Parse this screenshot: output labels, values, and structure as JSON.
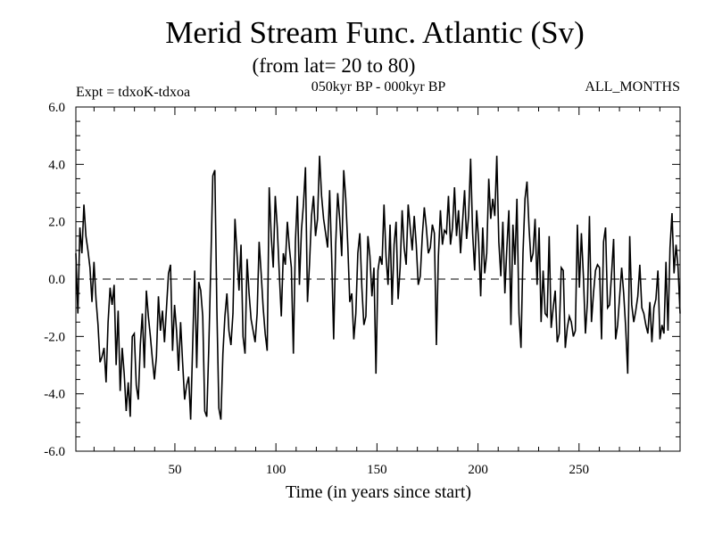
{
  "chart_data": {
    "type": "line",
    "title": "Merid Stream Func. Atlantic (Sv)",
    "subtitle": "(from lat= 20 to 80)",
    "experiment_label": "Expt = tdxoK-tdxoa",
    "period_label": "050kyr BP - 000kyr BP",
    "season_label": "ALL_MONTHS",
    "xlabel": "Time (in years since start)",
    "ylabel": "",
    "xlim": [
      1,
      300
    ],
    "ylim": [
      -6,
      6
    ],
    "x_ticks": [
      50,
      100,
      150,
      200,
      250
    ],
    "x_tick_labels": [
      "50",
      "100",
      "150",
      "200",
      "250"
    ],
    "y_ticks": [
      -6,
      -4,
      -2,
      0,
      2,
      4,
      6
    ],
    "y_tick_labels": [
      "-6.0",
      "-4.0",
      "-2.0",
      "0.0",
      "2.0",
      "4.0",
      "6.0"
    ],
    "zero_line": "dashed",
    "grid": false,
    "series": [
      {
        "values": [
          0.9,
          -1.2,
          1.8,
          0.9,
          2.6,
          1.5,
          1.0,
          0.4,
          -0.8,
          0.6,
          -0.7,
          -1.6,
          -2.9,
          -2.7,
          -2.4,
          -3.6,
          -1.5,
          -0.3,
          -0.9,
          -0.2,
          -3.0,
          -1.1,
          -3.9,
          -2.4,
          -3.3,
          -4.6,
          -3.6,
          -4.8,
          -2.0,
          -1.9,
          -3.7,
          -4.2,
          -2.3,
          -1.2,
          -3.1,
          -0.4,
          -1.3,
          -2.0,
          -2.8,
          -3.5,
          -2.7,
          -0.6,
          -1.8,
          -1.1,
          -2.2,
          -1.0,
          0.2,
          0.5,
          -2.5,
          -0.9,
          -1.8,
          -3.2,
          -1.5,
          -2.9,
          -4.2,
          -3.7,
          -3.4,
          -4.9,
          -2.3,
          0.3,
          -3.1,
          -0.1,
          -0.4,
          -1.3,
          -4.6,
          -4.8,
          -2.4,
          0.5,
          3.6,
          3.8,
          -1.0,
          -4.5,
          -4.9,
          -2.6,
          -1.3,
          -0.5,
          -1.8,
          -2.3,
          -1.2,
          2.1,
          0.9,
          -0.4,
          1.2,
          -2.0,
          -2.6,
          0.7,
          -0.5,
          -1.4,
          -1.8,
          -2.2,
          -1.2,
          1.3,
          0.2,
          -1.0,
          -1.9,
          -2.5,
          3.2,
          1.5,
          0.4,
          2.9,
          1.8,
          0.2,
          -1.3,
          0.9,
          0.5,
          2.0,
          1.1,
          0.4,
          -2.6,
          1.3,
          2.9,
          -0.2,
          1.7,
          2.6,
          3.9,
          -0.8,
          0.5,
          2.2,
          2.9,
          1.5,
          2.1,
          4.3,
          2.9,
          2.1,
          1.6,
          1.1,
          3.1,
          0.8,
          -2.1,
          1.2,
          3.0,
          2.1,
          0.8,
          3.8,
          2.8,
          1.2,
          -0.8,
          -0.5,
          -2.1,
          -1.2,
          0.9,
          1.6,
          -0.3,
          -1.6,
          -1.3,
          1.5,
          0.8,
          -0.6,
          0.4,
          -3.3,
          0.3,
          0.8,
          0.5,
          2.6,
          0.8,
          -0.2,
          1.9,
          -0.9,
          1.2,
          2.0,
          -0.7,
          0.4,
          2.4,
          1.1,
          0.5,
          2.6,
          1.8,
          1.0,
          2.2,
          1.2,
          -0.2,
          0.1,
          1.5,
          2.5,
          1.8,
          0.9,
          1.1,
          1.9,
          1.6,
          -2.3,
          0.8,
          2.4,
          1.2,
          1.7,
          1.6,
          2.9,
          1.2,
          1.8,
          3.2,
          1.5,
          2.4,
          0.9,
          2.0,
          3.1,
          1.4,
          2.2,
          4.2,
          1.6,
          0.3,
          2.4,
          1.3,
          -0.6,
          1.8,
          0.2,
          0.9,
          3.5,
          2.1,
          2.8,
          2.2,
          4.3,
          1.3,
          0.1,
          2.0,
          -0.5,
          1.1,
          2.4,
          -1.6,
          1.9,
          0.5,
          2.8,
          -1.2,
          -2.4,
          0.9,
          2.8,
          3.4,
          1.8,
          0.6,
          0.9,
          2.1,
          -0.2,
          1.8,
          -1.5,
          0.3,
          -1.2,
          -1.3,
          1.5,
          -1.7,
          -1.0,
          -0.4,
          -2.2,
          -1.9,
          0.4,
          0.3,
          -2.4,
          -1.7,
          -1.3,
          -1.5,
          -2.0,
          -1.8,
          1.9,
          -0.3,
          1.6,
          0.1,
          -1.9,
          -0.8,
          2.2,
          -1.5,
          -0.5,
          0.3,
          0.5,
          0.4,
          -2.1,
          1.3,
          1.8,
          -1.0,
          -0.9,
          0.2,
          1.4,
          -2.1,
          -1.6,
          -0.6,
          0.4,
          -0.5,
          -1.7,
          -3.3,
          1.5,
          -0.9,
          -1.5,
          -1.1,
          -0.6,
          0.5,
          -1.0,
          -1.2,
          -1.6,
          -1.9,
          -0.8,
          -2.2,
          -1.0,
          -0.7,
          0.3,
          -2.1,
          -1.6,
          -1.9,
          0.6,
          -1.8,
          1.1,
          2.3,
          0.2,
          1.2,
          0.4,
          -1.2
        ]
      }
    ]
  }
}
